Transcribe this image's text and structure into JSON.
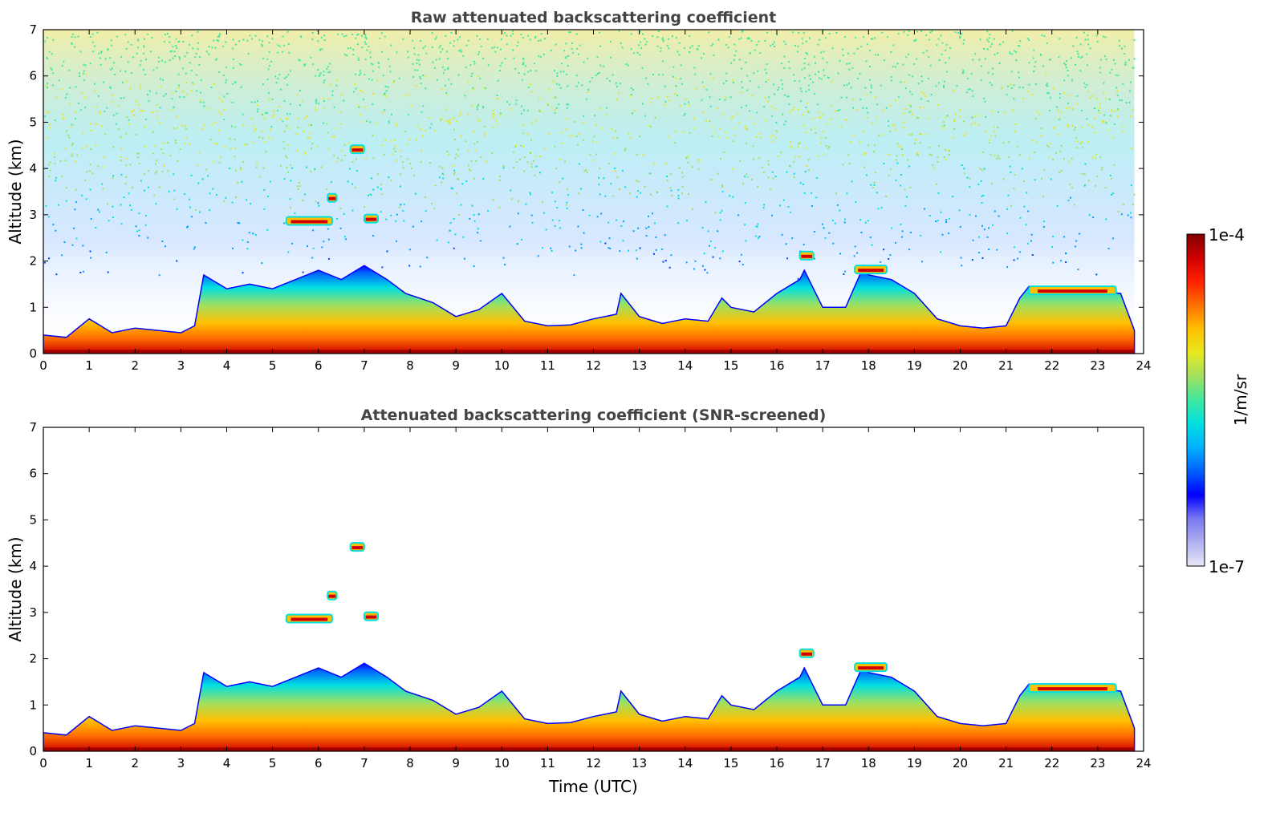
{
  "chart_data": [
    {
      "type": "heatmap",
      "title": "Raw attenuated backscattering coefficient",
      "xlabel": "",
      "ylabel": "Altitude (km)",
      "xlim": [
        0,
        24
      ],
      "ylim": [
        0,
        7
      ],
      "xticks": [
        "0",
        "1",
        "2",
        "3",
        "4",
        "5",
        "6",
        "7",
        "8",
        "9",
        "10",
        "11",
        "12",
        "13",
        "14",
        "15",
        "16",
        "17",
        "18",
        "19",
        "20",
        "21",
        "22",
        "23",
        "24"
      ],
      "yticks": [
        "0",
        "1",
        "2",
        "3",
        "4",
        "5",
        "6",
        "7"
      ],
      "screened": false,
      "boundary_layer_top_km": {
        "time": [
          0,
          0.5,
          1,
          1.5,
          2,
          2.5,
          3,
          3.3,
          3.5,
          4,
          4.5,
          5,
          5.5,
          6,
          6.5,
          7,
          7.5,
          7.9,
          8.2,
          8.5,
          9,
          9.5,
          10,
          10.5,
          11,
          11.5,
          12,
          12.5,
          12.6,
          13,
          13.5,
          14,
          14.5,
          14.8,
          15,
          15.5,
          16,
          16.5,
          16.6,
          17,
          17.5,
          17.9,
          18,
          18.5,
          19,
          19.5,
          20,
          20.5,
          21,
          21.3,
          21.5,
          22,
          22.5,
          23,
          23.5,
          23.8
        ],
        "altitude": [
          0.4,
          0.35,
          0.75,
          0.45,
          0.55,
          0.5,
          0.45,
          0.6,
          1.7,
          1.4,
          1.5,
          1.4,
          1.6,
          1.8,
          1.6,
          1.9,
          1.6,
          1.3,
          1.2,
          1.1,
          0.8,
          0.95,
          1.3,
          0.7,
          0.6,
          0.62,
          0.75,
          0.85,
          1.3,
          0.8,
          0.65,
          0.75,
          0.7,
          1.2,
          1.0,
          0.9,
          1.3,
          1.6,
          1.8,
          1.0,
          1.0,
          1.9,
          1.7,
          1.6,
          1.3,
          0.75,
          0.6,
          0.55,
          0.6,
          1.2,
          1.45,
          1.45,
          1.4,
          1.35,
          1.3,
          0.5
        ]
      },
      "elevated_layers_km": [
        {
          "time": [
            5.3,
            6.3
          ],
          "altitude": 2.85
        },
        {
          "time": [
            7.0,
            7.3
          ],
          "altitude": 2.9
        },
        {
          "time": [
            6.7,
            7.0
          ],
          "altitude": 4.4
        },
        {
          "time": [
            6.2,
            6.4
          ],
          "altitude": 3.35
        },
        {
          "time": [
            16.5,
            16.8
          ],
          "altitude": 2.1
        },
        {
          "time": [
            17.7,
            18.4
          ],
          "altitude": 1.8
        },
        {
          "time": [
            21.5,
            23.4
          ],
          "altitude": 1.35
        }
      ]
    },
    {
      "type": "heatmap",
      "title": "Attenuated backscattering coefficient (SNR-screened)",
      "xlabel": "Time (UTC)",
      "ylabel": "Altitude (km)",
      "xlim": [
        0,
        24
      ],
      "ylim": [
        0,
        7
      ],
      "xticks": [
        "0",
        "1",
        "2",
        "3",
        "4",
        "5",
        "6",
        "7",
        "8",
        "9",
        "10",
        "11",
        "12",
        "13",
        "14",
        "15",
        "16",
        "17",
        "18",
        "19",
        "20",
        "21",
        "22",
        "23",
        "24"
      ],
      "yticks": [
        "0",
        "1",
        "2",
        "3",
        "4",
        "5",
        "6",
        "7"
      ],
      "screened": true
    }
  ],
  "colorbar": {
    "label": "1/m/sr",
    "max_label": "1e-4",
    "min_label": "1e-7",
    "scale": "log",
    "colormap": [
      "#e8e8f8",
      "#b0b0f0",
      "#7878f0",
      "#0000ff",
      "#0060ff",
      "#00b0ff",
      "#00e0e0",
      "#40e8a0",
      "#a0e060",
      "#e8e820",
      "#ffc000",
      "#ff7000",
      "#ff2000",
      "#d00000",
      "#800000"
    ]
  }
}
